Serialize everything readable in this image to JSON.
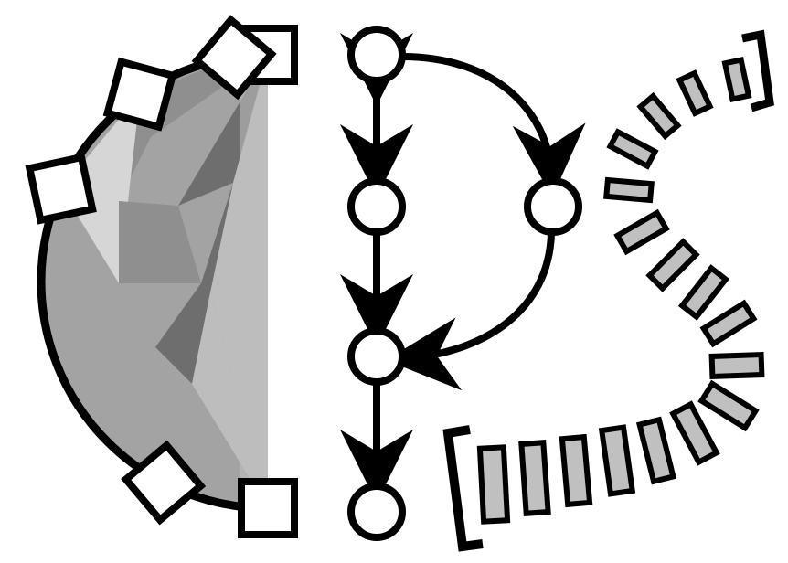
{
  "logo": {
    "description_text": "",
    "colors": {
      "ink": "#000000",
      "paper": "#ffffff",
      "shade_light": "#d6d6d6",
      "shade_mid_light": "#bdbdbd",
      "shade_mid": "#a3a3a3",
      "shade_mid_dark": "#8f8f8f",
      "shade_dark": "#6e6e6e",
      "bar_fill": "#c0c0c0"
    },
    "parts": [
      {
        "name": "semicircle-with-squares",
        "square_count": 6,
        "fan_regions": 11
      },
      {
        "name": "node-graph",
        "node_count": 5,
        "edge_count": 5
      },
      {
        "name": "bracketed-bar-wave",
        "bar_count": 17,
        "brackets": 2
      }
    ]
  }
}
